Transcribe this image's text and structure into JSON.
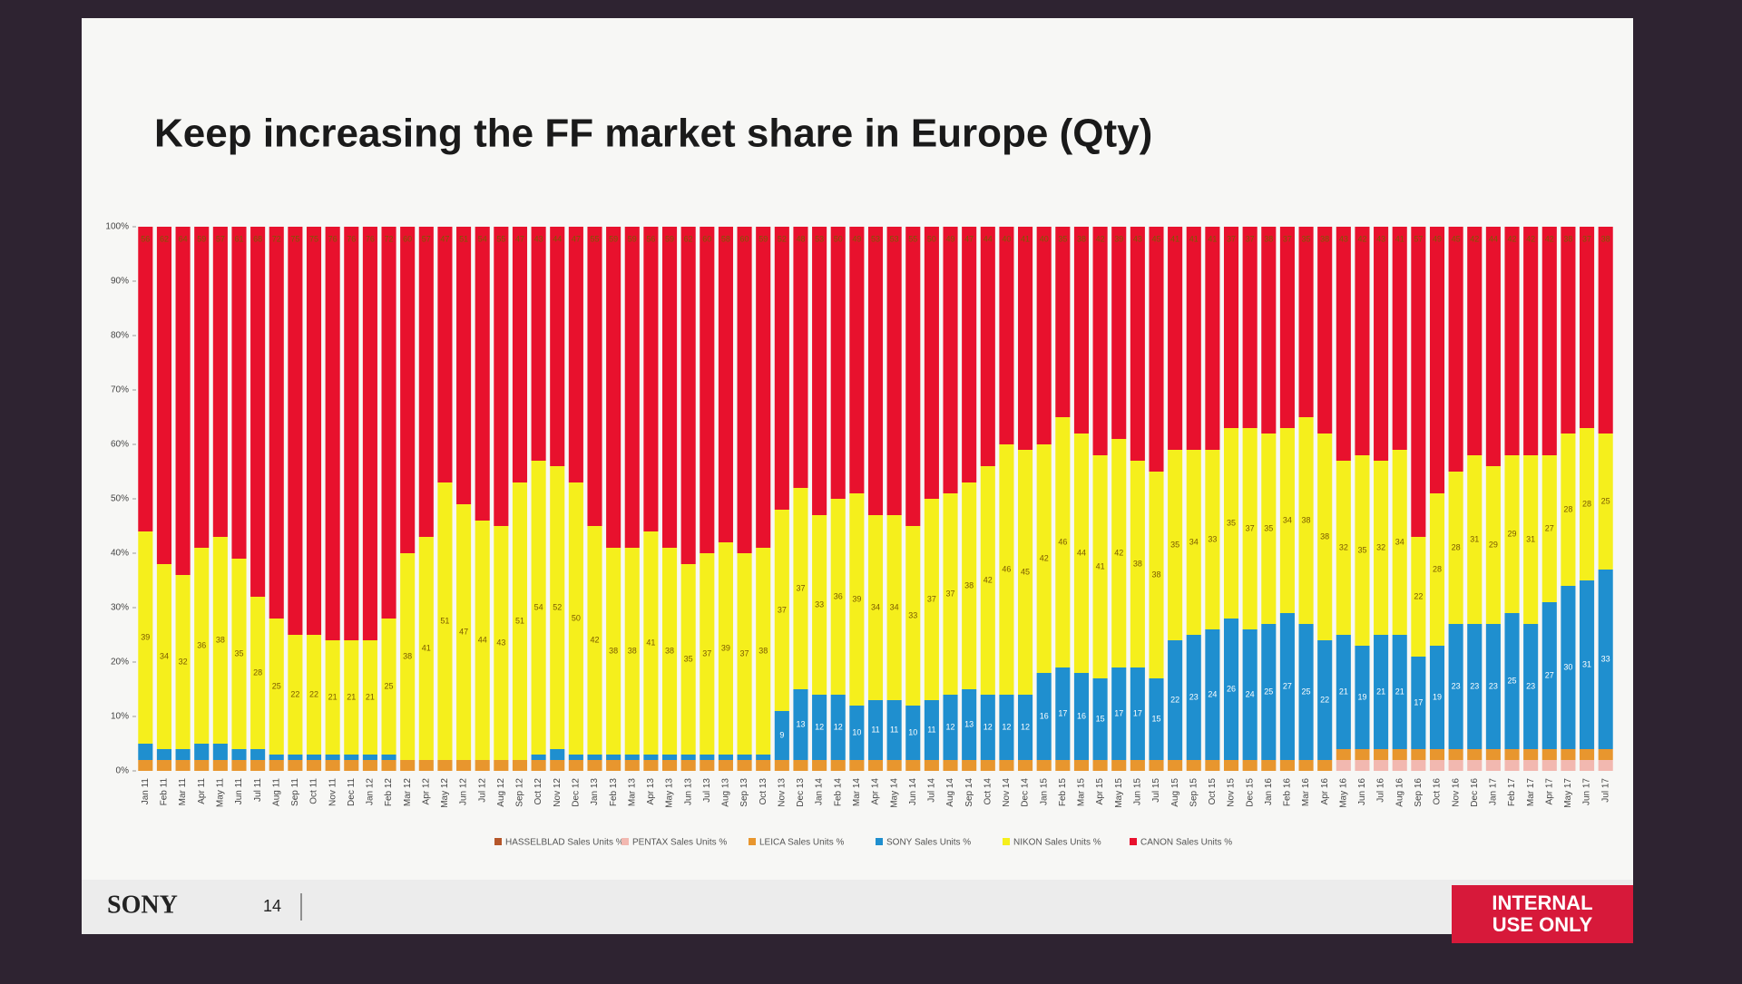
{
  "chart_data": {
    "type": "stacked_bar",
    "title": "Keep increasing the FF market share in Europe (Qty)",
    "categories": [
      "Jan 11",
      "Feb 11",
      "Mar 11",
      "Apr 11",
      "May 11",
      "Jun 11",
      "Jul 11",
      "Aug 11",
      "Sep 11",
      "Oct 11",
      "Nov 11",
      "Dec 11",
      "Jan 12",
      "Feb 12",
      "Mar 12",
      "Apr 12",
      "May 12",
      "Jun 12",
      "Jul 12",
      "Aug 12",
      "Sep 12",
      "Oct 12",
      "Nov 12",
      "Dec 12",
      "Jan 13",
      "Feb 13",
      "Mar 13",
      "Apr 13",
      "May 13",
      "Jun 13",
      "Jul 13",
      "Aug 13",
      "Sep 13",
      "Oct 13",
      "Nov 13",
      "Dec 13",
      "Jan 14",
      "Feb 14",
      "Mar 14",
      "Apr 14",
      "May 14",
      "Jun 14",
      "Jul 14",
      "Aug 14",
      "Sep 14",
      "Oct 14",
      "Nov 14",
      "Dec 14",
      "Jan 15",
      "Feb 15",
      "Mar 15",
      "Apr 15",
      "May 15",
      "Jun 15",
      "Jul 15",
      "Aug 15",
      "Sep 15",
      "Oct 15",
      "Nov 15",
      "Dec 15",
      "Jan 16",
      "Feb 16",
      "Mar 16",
      "Apr 16",
      "May 16",
      "Jun 16",
      "Jul 16",
      "Aug 16",
      "Sep 16",
      "Oct 16",
      "Nov 16",
      "Dec 16",
      "Jan 17",
      "Feb 17",
      "Mar 17",
      "Apr 17",
      "May 17",
      "Jun 17",
      "Jul 17"
    ],
    "series": [
      {
        "name": "HASSELBLAD Sales Units %",
        "color": "#b5562a",
        "values": [
          0,
          0,
          0,
          0,
          0,
          0,
          0,
          0,
          0,
          0,
          0,
          0,
          0,
          0,
          0,
          0,
          0,
          0,
          0,
          0,
          0,
          0,
          0,
          0,
          0,
          0,
          0,
          0,
          0,
          0,
          0,
          0,
          0,
          0,
          0,
          0,
          0,
          0,
          0,
          0,
          0,
          0,
          0,
          0,
          0,
          0,
          0,
          0,
          0,
          0,
          0,
          0,
          0,
          0,
          0,
          0,
          0,
          0,
          0,
          0,
          0,
          0,
          0,
          0,
          0,
          0,
          0,
          0,
          0,
          0,
          0,
          0,
          0,
          0,
          0,
          0,
          0,
          0,
          0
        ]
      },
      {
        "name": "PENTAX Sales Units %",
        "color": "#f2b8b0",
        "values": [
          0,
          0,
          0,
          0,
          0,
          0,
          0,
          0,
          0,
          0,
          0,
          0,
          0,
          0,
          0,
          0,
          0,
          0,
          0,
          0,
          0,
          0,
          0,
          0,
          0,
          0,
          0,
          0,
          0,
          0,
          0,
          0,
          0,
          0,
          0,
          0,
          0,
          0,
          0,
          0,
          0,
          0,
          0,
          0,
          0,
          0,
          0,
          0,
          0,
          0,
          0,
          0,
          0,
          0,
          0,
          0,
          0,
          0,
          0,
          0,
          0,
          0,
          0,
          0,
          2,
          2,
          2,
          2,
          2,
          2,
          2,
          2,
          2,
          2,
          2,
          2,
          2,
          2,
          2
        ]
      },
      {
        "name": "LEICA Sales Units %",
        "color": "#e8962e",
        "values": [
          2,
          2,
          2,
          2,
          2,
          2,
          2,
          2,
          2,
          2,
          2,
          2,
          2,
          2,
          2,
          2,
          2,
          2,
          2,
          2,
          2,
          2,
          2,
          2,
          2,
          2,
          2,
          2,
          2,
          2,
          2,
          2,
          2,
          2,
          2,
          2,
          2,
          2,
          2,
          2,
          2,
          2,
          2,
          2,
          2,
          2,
          2,
          2,
          2,
          2,
          2,
          2,
          2,
          2,
          2,
          2,
          2,
          2,
          2,
          2,
          2,
          2,
          2,
          2,
          2,
          2,
          2,
          2,
          2,
          2,
          2,
          2,
          2,
          2,
          2,
          2,
          2,
          2,
          2
        ]
      },
      {
        "name": "SONY Sales Units %",
        "color": "#1f8fcf",
        "values": [
          3,
          2,
          2,
          3,
          3,
          2,
          2,
          1,
          1,
          1,
          1,
          1,
          1,
          1,
          0,
          0,
          0,
          0,
          0,
          0,
          0,
          1,
          2,
          1,
          1,
          1,
          1,
          1,
          1,
          1,
          1,
          1,
          1,
          1,
          9,
          13,
          12,
          12,
          10,
          11,
          11,
          10,
          11,
          12,
          13,
          12,
          12,
          12,
          16,
          17,
          16,
          15,
          17,
          17,
          15,
          22,
          23,
          24,
          26,
          24,
          25,
          27,
          25,
          22,
          21,
          19,
          21,
          21,
          17,
          19,
          23,
          23,
          23,
          25,
          23,
          27,
          30,
          31,
          33
        ]
      },
      {
        "name": "NIKON Sales Units %",
        "color": "#f5ef1c",
        "values": [
          39,
          34,
          32,
          36,
          38,
          35,
          28,
          25,
          22,
          22,
          21,
          21,
          21,
          25,
          38,
          41,
          51,
          47,
          44,
          43,
          51,
          54,
          52,
          50,
          42,
          38,
          38,
          41,
          38,
          35,
          37,
          39,
          37,
          38,
          37,
          37,
          33,
          36,
          39,
          34,
          34,
          33,
          37,
          37,
          38,
          42,
          46,
          45,
          42,
          46,
          44,
          41,
          42,
          38,
          38,
          35,
          34,
          33,
          35,
          37,
          35,
          34,
          38,
          38,
          32,
          35,
          32,
          34,
          22,
          28,
          28,
          31,
          29,
          29,
          31,
          27,
          28,
          28,
          25
        ]
      },
      {
        "name": "CANON Sales Units %",
        "color": "#e8112d",
        "values": [
          56,
          62,
          64,
          59,
          57,
          61,
          68,
          72,
          75,
          75,
          76,
          76,
          76,
          72,
          60,
          57,
          47,
          51,
          54,
          55,
          47,
          43,
          44,
          47,
          55,
          59,
          59,
          56,
          59,
          62,
          60,
          58,
          60,
          59,
          52,
          48,
          53,
          50,
          49,
          53,
          53,
          55,
          50,
          49,
          47,
          44,
          40,
          41,
          40,
          35,
          38,
          42,
          39,
          43,
          45,
          41,
          41,
          41,
          37,
          37,
          38,
          37,
          35,
          38,
          43,
          42,
          43,
          41,
          57,
          49,
          45,
          42,
          44,
          42,
          42,
          42,
          38,
          37,
          38
        ]
      }
    ],
    "ylim": [
      0,
      100
    ],
    "yticks": [
      {
        "value": 0,
        "label": "0%"
      },
      {
        "value": 10,
        "label": "10%"
      },
      {
        "value": 20,
        "label": "20%"
      },
      {
        "value": 30,
        "label": "30%"
      },
      {
        "value": 40,
        "label": "40%"
      },
      {
        "value": 50,
        "label": "50%"
      },
      {
        "value": 60,
        "label": "60%"
      },
      {
        "value": 70,
        "label": "70%"
      },
      {
        "value": 80,
        "label": "80%"
      },
      {
        "value": 90,
        "label": "90%"
      },
      {
        "value": 100,
        "label": "100%"
      }
    ],
    "legend": "bottom"
  },
  "footer": {
    "brand": "SONY",
    "page": "14",
    "badge": [
      "INTERNAL",
      "USE ONLY"
    ]
  }
}
